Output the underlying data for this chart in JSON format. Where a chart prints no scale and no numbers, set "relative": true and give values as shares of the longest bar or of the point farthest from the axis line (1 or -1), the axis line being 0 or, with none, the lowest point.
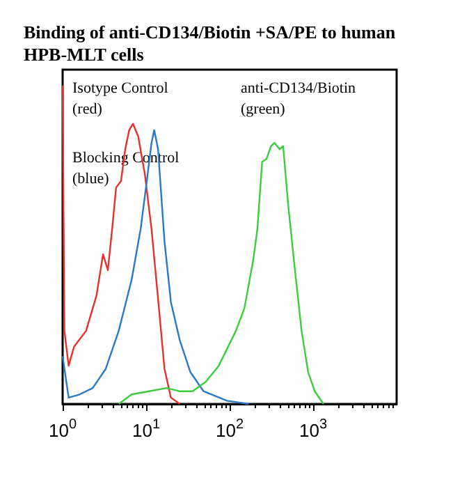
{
  "chart_data": {
    "type": "line",
    "title": "Binding of anti-CD134/Biotin +SA/PE to human HPB-MLT cells",
    "relative": true,
    "log": "x",
    "xlim": [
      1,
      10000
    ],
    "xticks": [
      {
        "value": 1,
        "label": "10$^{0}$"
      },
      {
        "value": 10,
        "label": "10$^{1}$"
      },
      {
        "value": 100,
        "label": "10$^{2}$"
      },
      {
        "value": 1000,
        "label": "10$^{3}$"
      }
    ],
    "tick_labels": "x",
    "grid": false,
    "marker": "none",
    "line_style": "solid",
    "annotations": [
      "Isotype Control\n(red)",
      "Blocking Control\n(blue)",
      "anti-CD134/Biotin\n(green)"
    ],
    "series": [
      {
        "color": "#e8302a",
        "x": [
          1,
          1.05,
          1.18,
          1.37,
          1.91,
          2.54,
          3.05,
          3.48,
          3.92,
          4.37,
          5.0,
          5.62,
          6.27,
          6.97,
          8.05,
          9.67,
          11.6,
          13.9,
          16.6,
          19.8,
          25.3
        ],
        "values": [
          1,
          0.23,
          0.12,
          0.18,
          0.23,
          0.34,
          0.47,
          0.42,
          0.55,
          0.68,
          0.7,
          0.8,
          0.86,
          0.88,
          0.84,
          0.72,
          0.55,
          0.33,
          0.11,
          0.02,
          0
        ]
      },
      {
        "color": "#2a78c8",
        "x": [
          1,
          1.18,
          1.6,
          2.29,
          3.28,
          4.7,
          6.7,
          8.6,
          10.3,
          11.6,
          12.5,
          13.9,
          16.6,
          19.8,
          25.3,
          33.9,
          48.7,
          93,
          170
        ],
        "values": [
          0.15,
          0.02,
          0.03,
          0.05,
          0.11,
          0.23,
          0.39,
          0.55,
          0.71,
          0.82,
          0.86,
          0.8,
          0.51,
          0.32,
          0.2,
          0.1,
          0.04,
          0.01,
          0
        ]
      },
      {
        "color": "#3ccc3c",
        "x": [
          4.7,
          6.7,
          10.8,
          17.6,
          25.3,
          36,
          51.9,
          74,
          119,
          150,
          191,
          215,
          245,
          277,
          313,
          345,
          397,
          437,
          505,
          606,
          727,
          871,
          1045,
          1330
        ],
        "values": [
          0,
          0.03,
          0.04,
          0.05,
          0.04,
          0.04,
          0.07,
          0.12,
          0.23,
          0.3,
          0.45,
          0.55,
          0.76,
          0.77,
          0.81,
          0.82,
          0.8,
          0.81,
          0.62,
          0.42,
          0.23,
          0.1,
          0.04,
          0
        ]
      }
    ]
  }
}
